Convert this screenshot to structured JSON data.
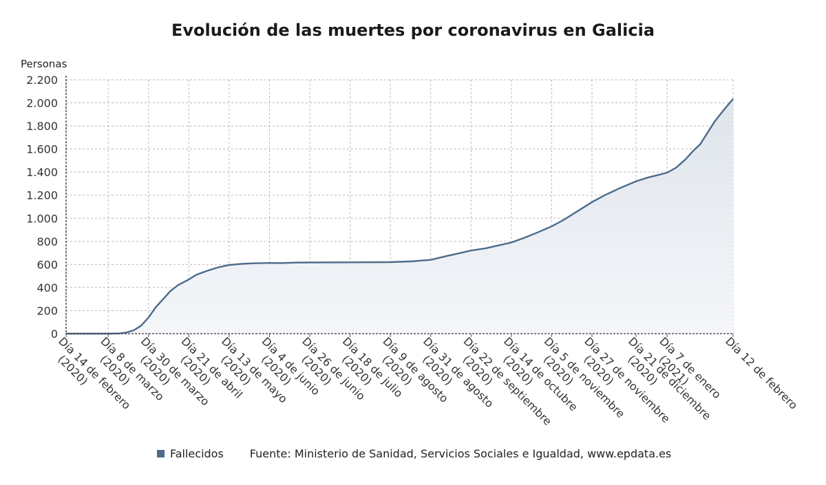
{
  "chart_data": {
    "type": "area",
    "title": "Evolución de las muertes por coronavirus en Galicia",
    "ylabel": "Personas",
    "xlabel": "",
    "ylim": [
      0,
      2200
    ],
    "yticks": [
      0,
      200,
      400,
      600,
      800,
      1000,
      1200,
      1400,
      1600,
      1800,
      2000,
      2200
    ],
    "ytick_labels": [
      "0",
      "200",
      "400",
      "600",
      "800",
      "1.000",
      "1.200",
      "1.400",
      "1.600",
      "1.800",
      "2.000",
      "2.200"
    ],
    "xlim": [
      "2020-02-14",
      "2021-02-12"
    ],
    "x_ticks": [
      {
        "date": "2020-02-14",
        "lines": [
          "Día 14 de febrero",
          "(2020)"
        ]
      },
      {
        "date": "2020-03-08",
        "lines": [
          "Día 8 de marzo",
          "(2020)"
        ]
      },
      {
        "date": "2020-03-30",
        "lines": [
          "Día 30 de marzo",
          "(2020)"
        ]
      },
      {
        "date": "2020-04-21",
        "lines": [
          "Día 21 de abril",
          "(2020)"
        ]
      },
      {
        "date": "2020-05-13",
        "lines": [
          "Día 13 de mayo",
          "(2020)"
        ]
      },
      {
        "date": "2020-06-04",
        "lines": [
          "Día 4 de junio",
          "(2020)"
        ]
      },
      {
        "date": "2020-06-26",
        "lines": [
          "Día 26 de junio",
          "(2020)"
        ]
      },
      {
        "date": "2020-07-18",
        "lines": [
          "Día 18 de julio",
          "(2020)"
        ]
      },
      {
        "date": "2020-08-09",
        "lines": [
          "Día 9 de agosto",
          "(2020)"
        ]
      },
      {
        "date": "2020-08-31",
        "lines": [
          "Día 31 de agosto",
          "(2020)"
        ]
      },
      {
        "date": "2020-09-22",
        "lines": [
          "Día 22 de septiembre",
          "(2020)"
        ]
      },
      {
        "date": "2020-10-14",
        "lines": [
          "Día 14 de octubre",
          "(2020)"
        ]
      },
      {
        "date": "2020-11-05",
        "lines": [
          "Día 5 de noviembre",
          "(2020)"
        ]
      },
      {
        "date": "2020-11-27",
        "lines": [
          "Día 27 de noviembre",
          "(2020)"
        ]
      },
      {
        "date": "2020-12-21",
        "lines": [
          "Día 21 de diciembre",
          "(2020)"
        ]
      },
      {
        "date": "2021-01-07",
        "lines": [
          "Día 7 de enero",
          "(2021)"
        ]
      },
      {
        "date": "2021-02-12",
        "lines": [
          "Día 12 de febrero"
        ]
      }
    ],
    "grid": true,
    "legend_position": "bottom-left",
    "series": [
      {
        "name": "Fallecidos",
        "color": "#4d6a8a",
        "points": [
          [
            "2020-02-14",
            0
          ],
          [
            "2020-03-08",
            0
          ],
          [
            "2020-03-14",
            2
          ],
          [
            "2020-03-18",
            10
          ],
          [
            "2020-03-22",
            30
          ],
          [
            "2020-03-26",
            70
          ],
          [
            "2020-03-30",
            140
          ],
          [
            "2020-04-03",
            230
          ],
          [
            "2020-04-07",
            300
          ],
          [
            "2020-04-11",
            370
          ],
          [
            "2020-04-15",
            420
          ],
          [
            "2020-04-21",
            470
          ],
          [
            "2020-04-25",
            510
          ],
          [
            "2020-05-01",
            545
          ],
          [
            "2020-05-07",
            575
          ],
          [
            "2020-05-13",
            595
          ],
          [
            "2020-05-20",
            605
          ],
          [
            "2020-05-27",
            610
          ],
          [
            "2020-06-04",
            613
          ],
          [
            "2020-06-10",
            612
          ],
          [
            "2020-06-18",
            616
          ],
          [
            "2020-06-26",
            617
          ],
          [
            "2020-07-18",
            618
          ],
          [
            "2020-08-09",
            620
          ],
          [
            "2020-08-20",
            626
          ],
          [
            "2020-08-31",
            640
          ],
          [
            "2020-09-08",
            670
          ],
          [
            "2020-09-15",
            695
          ],
          [
            "2020-09-22",
            720
          ],
          [
            "2020-09-30",
            740
          ],
          [
            "2020-10-07",
            765
          ],
          [
            "2020-10-14",
            790
          ],
          [
            "2020-10-21",
            830
          ],
          [
            "2020-10-28",
            875
          ],
          [
            "2020-11-05",
            930
          ],
          [
            "2020-11-12",
            990
          ],
          [
            "2020-11-19",
            1060
          ],
          [
            "2020-11-27",
            1140
          ],
          [
            "2020-12-04",
            1200
          ],
          [
            "2020-12-12",
            1260
          ],
          [
            "2020-12-21",
            1320
          ],
          [
            "2020-12-28",
            1355
          ],
          [
            "2021-01-02",
            1375
          ],
          [
            "2021-01-07",
            1395
          ],
          [
            "2021-01-12",
            1440
          ],
          [
            "2021-01-17",
            1510
          ],
          [
            "2021-01-21",
            1580
          ],
          [
            "2021-01-25",
            1640
          ],
          [
            "2021-01-29",
            1740
          ],
          [
            "2021-02-02",
            1840
          ],
          [
            "2021-02-07",
            1940
          ],
          [
            "2021-02-12",
            2035
          ]
        ]
      }
    ]
  },
  "legend": {
    "label": "Fallecidos",
    "color": "#4d6a8a"
  },
  "source": "Fuente: Ministerio de Sanidad, Servicios Sociales e Igualdad, www.epdata.es"
}
